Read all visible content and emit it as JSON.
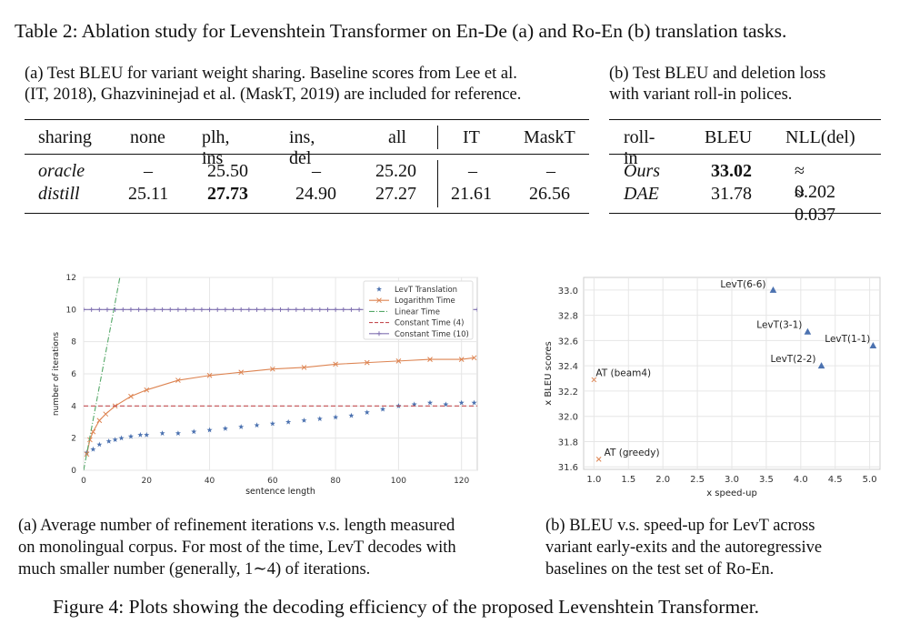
{
  "table_caption": "Table 2: Ablation study for Levenshtein Transformer on En-De (a) and Ro-En (b) translation tasks.",
  "table_a": {
    "caption_lines": [
      "(a) Test BLEU for variant weight sharing. Baseline scores from Lee et al.",
      "(IT, 2018), Ghazvininejad et al. (MaskT, 2019) are included for reference."
    ],
    "headers": [
      "sharing",
      "none",
      "plh, ins",
      "ins, del",
      "all",
      "IT",
      "MaskT"
    ],
    "rows": [
      {
        "label": "oracle",
        "cells": [
          "–",
          "25.50",
          "–",
          "25.20",
          "–",
          "–"
        ]
      },
      {
        "label": "distill",
        "cells": [
          "25.11",
          "27.73",
          "24.90",
          "27.27",
          "21.61",
          "26.56"
        ]
      }
    ]
  },
  "table_b": {
    "caption_lines": [
      "(b)  Test BLEU and deletion loss",
      "with variant roll-in polices."
    ],
    "headers": [
      "roll-in",
      "BLEU",
      "NLL(del)"
    ],
    "rows": [
      {
        "label": "Ours",
        "cells": [
          "33.02",
          "≈ 0.202"
        ]
      },
      {
        "label": "DAE",
        "cells": [
          "31.78",
          "≈ 0.037"
        ]
      }
    ]
  },
  "chart_data": [
    {
      "type": "line",
      "xlabel": "sentence length",
      "ylabel": "number of iterations",
      "xlim": [
        0,
        125
      ],
      "ylim": [
        0,
        12
      ],
      "xticks": [
        0,
        20,
        40,
        60,
        80,
        100,
        120
      ],
      "yticks": [
        0,
        2,
        4,
        6,
        8,
        10,
        12
      ],
      "grid": true,
      "legend_position": "top-right",
      "series": [
        {
          "name": "LevT Translation",
          "marker": "star",
          "color": "#4c72b0",
          "x": [
            1,
            3,
            5,
            8,
            10,
            12,
            15,
            18,
            20,
            25,
            30,
            35,
            40,
            45,
            50,
            55,
            60,
            65,
            70,
            75,
            80,
            85,
            90,
            95,
            100,
            105,
            110,
            115,
            120,
            124
          ],
          "y": [
            1.1,
            1.3,
            1.6,
            1.8,
            1.9,
            2.0,
            2.1,
            2.2,
            2.2,
            2.3,
            2.3,
            2.4,
            2.5,
            2.6,
            2.7,
            2.8,
            2.9,
            3.0,
            3.1,
            3.2,
            3.3,
            3.4,
            3.6,
            3.8,
            4.0,
            4.1,
            4.2,
            4.1,
            4.2,
            4.2
          ]
        },
        {
          "name": "Logarithm Time",
          "marker": "x",
          "color": "#dd8452",
          "x": [
            1,
            2,
            3,
            5,
            7,
            10,
            15,
            20,
            30,
            40,
            50,
            60,
            70,
            80,
            90,
            100,
            110,
            120,
            124
          ],
          "y": [
            1.0,
            1.9,
            2.4,
            3.1,
            3.5,
            4.0,
            4.6,
            5.0,
            5.6,
            5.9,
            6.1,
            6.3,
            6.4,
            6.6,
            6.7,
            6.8,
            6.9,
            6.9,
            7.0
          ]
        },
        {
          "name": "Linear Time",
          "style": "dashdot",
          "color": "#55a868",
          "x": [
            0,
            11.5
          ],
          "y": [
            0,
            12
          ]
        },
        {
          "name": "Constant Time (4)",
          "style": "dashed",
          "color": "#c44e52",
          "x": [
            0,
            125
          ],
          "y": [
            4,
            4
          ]
        },
        {
          "name": "Constant Time (10)",
          "marker": "plus",
          "color": "#8172b2",
          "x": [
            0,
            125
          ],
          "y": [
            10,
            10
          ]
        }
      ]
    },
    {
      "type": "scatter",
      "xlabel": "x speed-up",
      "ylabel": "x BLEU scores",
      "xlim": [
        0.85,
        5.15
      ],
      "ylim": [
        31.58,
        33.1
      ],
      "xticks": [
        1.0,
        1.5,
        2.0,
        2.5,
        3.0,
        3.5,
        4.0,
        4.5,
        5.0
      ],
      "yticks": [
        31.6,
        31.8,
        32.0,
        32.2,
        32.4,
        32.6,
        32.8,
        33.0
      ],
      "grid": true,
      "points": [
        {
          "label": "LevT(6-6)",
          "x": 3.6,
          "y": 33.0,
          "marker": "triangle",
          "color": "#4c72b0"
        },
        {
          "label": "LevT(3-1)",
          "x": 4.1,
          "y": 32.67,
          "marker": "triangle",
          "color": "#4c72b0"
        },
        {
          "label": "LevT(1-1)",
          "x": 5.05,
          "y": 32.56,
          "marker": "triangle",
          "color": "#4c72b0"
        },
        {
          "label": "LevT(2-2)",
          "x": 4.3,
          "y": 32.4,
          "marker": "triangle",
          "color": "#4c72b0"
        },
        {
          "label": "AT (beam4)",
          "x": 1.0,
          "y": 32.29,
          "marker": "x",
          "color": "#dd8452"
        },
        {
          "label": "AT (greedy)",
          "x": 1.07,
          "y": 31.66,
          "marker": "x",
          "color": "#dd8452"
        }
      ]
    }
  ],
  "figure_a_caption_lines": [
    "(a)  Average number of refinement iterations v.s. length measured",
    "on monolingual corpus. For most of the time, LevT decodes with",
    "much smaller number (generally, 1∼4) of iterations."
  ],
  "figure_b_caption_lines": [
    "(b)  BLEU v.s. speed-up for LevT across",
    "variant early-exits and the autoregressive",
    "baselines on the test set of Ro-En."
  ],
  "figure_caption": "Figure 4: Plots showing the decoding efficiency of the proposed Levenshtein Transformer."
}
